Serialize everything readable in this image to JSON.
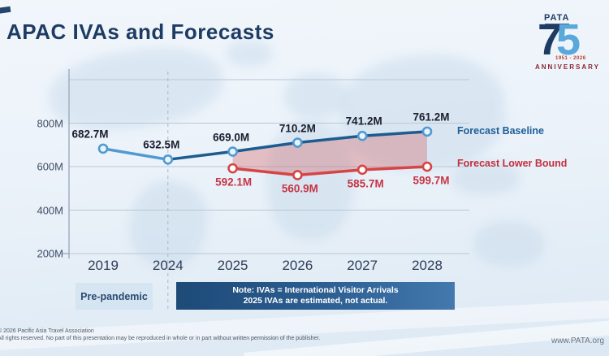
{
  "slide": {
    "title": "APAC IVAs and Forecasts",
    "footer_line1": "© 2026 Pacific Asia Travel Association",
    "footer_line2": "All rights reserved. No part of this presentation may be reproduced in whole or in part without written permission of the publisher.",
    "website": "www.PATA.org"
  },
  "logo": {
    "brand": "PATA",
    "digit_7": "7",
    "digit_5": "5",
    "years": "1951 - 2026",
    "anniversary": "ANNIVERSARY"
  },
  "annotations": {
    "pre_pandemic_label": "Pre-pandemic",
    "note_line1": "Note: IVAs = International Visitor Arrivals",
    "note_line2": "2025 IVAs are estimated, not actual."
  },
  "colors": {
    "title_text": "#1e3c63",
    "baseline_line": "#1c5c90",
    "baseline_pre_pandemic_segment": "#4f9ad0",
    "baseline_marker_fill": "#e9f3fc",
    "lower_bound_line": "#d64545",
    "lower_bound_label_text": "#c63545",
    "uncertainty_area_fill": "rgba(213,85,85,0.32)",
    "gridline": "#b9c7d6",
    "dashed_divider": "#aab8c8",
    "note_box_gradient_left": "#1d4a77",
    "note_box_gradient_right": "#4379ad",
    "pre_pandemic_box_bg": "#d3e3f2",
    "anniversary_red": "#8e2433",
    "logo_light_blue": "#58a8dc"
  },
  "chart_data": {
    "type": "line",
    "title": "APAC IVAs and Forecasts",
    "x": [
      "2019",
      "2024",
      "2025",
      "2026",
      "2027",
      "2028"
    ],
    "unit": "M",
    "series": [
      {
        "name": "Forecast Baseline",
        "values": [
          682.7,
          632.5,
          669.0,
          710.2,
          741.2,
          761.2
        ]
      },
      {
        "name": "Forecast Lower Bound",
        "values": [
          null,
          null,
          592.1,
          560.9,
          585.7,
          599.7
        ]
      }
    ],
    "y_ticks": [
      {
        "value": 800,
        "label": "800M"
      },
      {
        "value": 600,
        "label": "600M"
      },
      {
        "value": 400,
        "label": "400M"
      },
      {
        "value": 200,
        "label": "200M"
      }
    ],
    "gridline_values": [
      1000,
      800,
      600,
      400,
      200
    ],
    "ylim": [
      200,
      1000
    ],
    "shaded_area": "between Forecast Baseline and Forecast Lower Bound from 2025 to 2028",
    "dashed_divider_at_x": "2024",
    "legend_position": "right-of-last-points",
    "grid": true
  }
}
